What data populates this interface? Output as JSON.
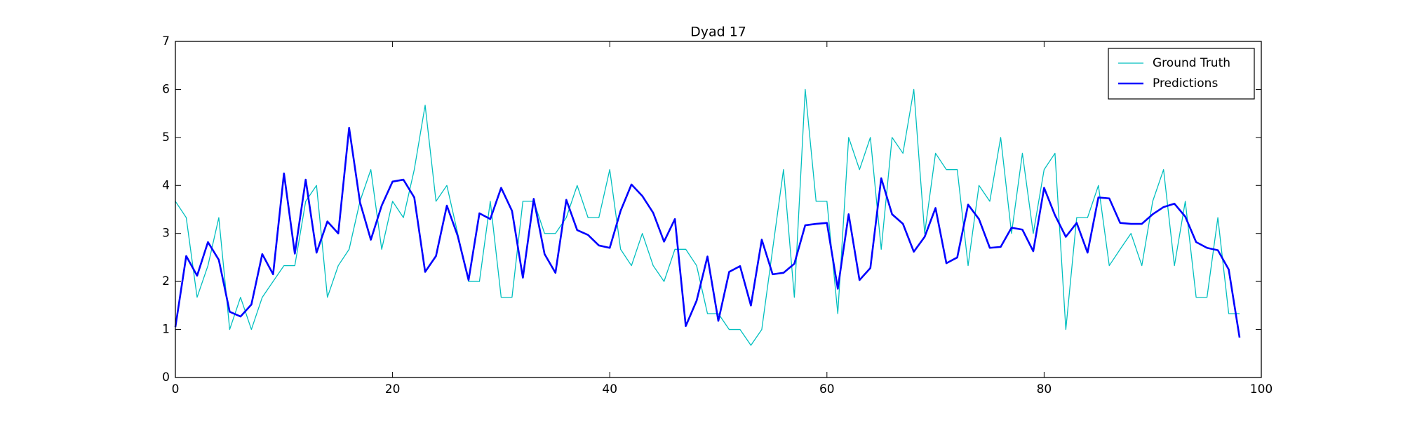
{
  "chart_data": {
    "type": "line",
    "title": "Dyad 17",
    "x": [
      0,
      1,
      2,
      3,
      4,
      5,
      6,
      7,
      8,
      9,
      10,
      11,
      12,
      13,
      14,
      15,
      16,
      17,
      18,
      19,
      20,
      21,
      22,
      23,
      24,
      25,
      26,
      27,
      28,
      29,
      30,
      31,
      32,
      33,
      34,
      35,
      36,
      37,
      38,
      39,
      40,
      41,
      42,
      43,
      44,
      45,
      46,
      47,
      48,
      49,
      50,
      51,
      52,
      53,
      54,
      55,
      56,
      57,
      58,
      59,
      60,
      61,
      62,
      63,
      64,
      65,
      66,
      67,
      68,
      69,
      70,
      71,
      72,
      73,
      74,
      75,
      76,
      77,
      78,
      79,
      80,
      81,
      82,
      83,
      84,
      85,
      86,
      87,
      88,
      89,
      90,
      91,
      92,
      93,
      94,
      95,
      96,
      97,
      98
    ],
    "series": [
      {
        "name": "Ground Truth",
        "color": "#00bfbf",
        "width": 1.3,
        "values": [
          3.67,
          3.33,
          1.67,
          2.33,
          3.33,
          1.0,
          1.67,
          1.0,
          1.67,
          2.0,
          2.33,
          2.33,
          3.67,
          4.0,
          1.67,
          2.33,
          2.67,
          3.67,
          4.33,
          2.67,
          3.67,
          3.33,
          4.33,
          5.67,
          3.67,
          4.0,
          3.0,
          2.0,
          2.0,
          3.67,
          1.67,
          1.67,
          3.67,
          3.67,
          3.0,
          3.0,
          3.33,
          4.0,
          3.33,
          3.33,
          4.33,
          2.67,
          2.33,
          3.0,
          2.33,
          2.0,
          2.67,
          2.67,
          2.33,
          1.33,
          1.33,
          1.0,
          1.0,
          0.67,
          1.0,
          2.67,
          4.33,
          1.67,
          6.0,
          3.67,
          3.67,
          1.33,
          5.0,
          4.33,
          5.0,
          2.67,
          5.0,
          4.67,
          6.0,
          3.0,
          4.67,
          4.33,
          4.33,
          2.33,
          4.0,
          3.67,
          5.0,
          3.0,
          4.67,
          3.0,
          4.33,
          4.67,
          1.0,
          3.33,
          3.33,
          4.0,
          2.33,
          2.67,
          3.0,
          2.33,
          3.67,
          4.33,
          2.33,
          3.67,
          1.67,
          1.67,
          3.33,
          1.33,
          1.33
        ]
      },
      {
        "name": "Predictions",
        "color": "#0000ff",
        "width": 2.6,
        "values": [
          1.05,
          2.53,
          2.12,
          2.82,
          2.45,
          1.37,
          1.27,
          1.52,
          2.57,
          2.15,
          4.25,
          2.58,
          4.12,
          2.6,
          3.25,
          3.0,
          5.2,
          3.65,
          2.87,
          3.58,
          4.08,
          4.12,
          3.75,
          2.2,
          2.53,
          3.58,
          2.95,
          2.03,
          3.42,
          3.3,
          3.95,
          3.47,
          2.08,
          3.72,
          2.57,
          2.18,
          3.7,
          3.07,
          2.97,
          2.75,
          2.7,
          3.47,
          4.02,
          3.78,
          3.43,
          2.83,
          3.3,
          1.07,
          1.6,
          2.52,
          1.18,
          2.2,
          2.32,
          1.5,
          2.87,
          2.15,
          2.18,
          2.37,
          3.17,
          3.2,
          3.22,
          1.85,
          3.4,
          2.03,
          2.28,
          4.15,
          3.4,
          3.2,
          2.62,
          2.93,
          3.53,
          2.38,
          2.5,
          3.6,
          3.3,
          2.7,
          2.72,
          3.12,
          3.08,
          2.63,
          3.95,
          3.38,
          2.93,
          3.22,
          2.6,
          3.75,
          3.73,
          3.22,
          3.2,
          3.2,
          3.4,
          3.55,
          3.62,
          3.35,
          2.82,
          2.7,
          2.65,
          2.25,
          0.83
        ]
      }
    ],
    "xlim": [
      0,
      100
    ],
    "xticks": [
      0,
      20,
      40,
      60,
      80,
      100
    ],
    "ylim": [
      0,
      7
    ],
    "yticks": [
      0,
      1,
      2,
      3,
      4,
      5,
      6,
      7
    ],
    "legend": "upper right"
  }
}
